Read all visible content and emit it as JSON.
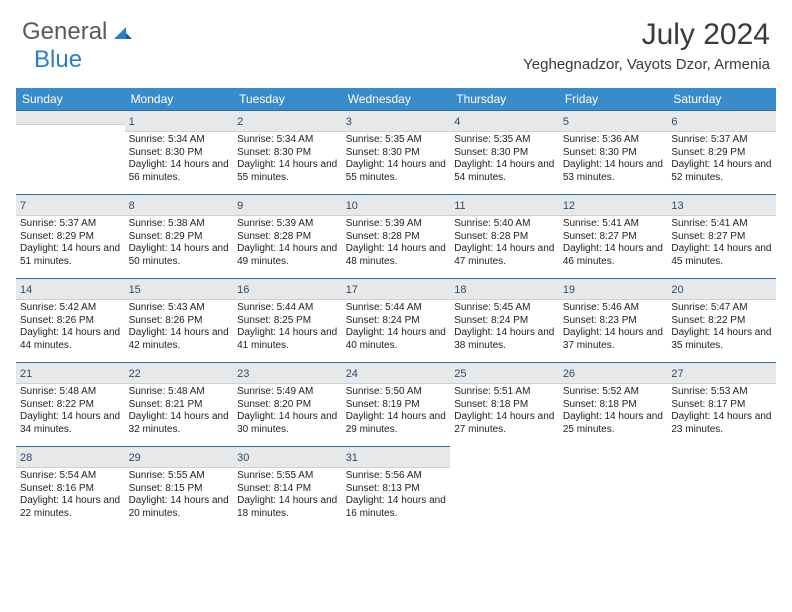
{
  "brand": {
    "word1": "General",
    "word2": "Blue"
  },
  "title": "July 2024",
  "location": "Yeghegnadzor, Vayots Dzor, Armenia",
  "colors": {
    "header_bg": "#3a8bc9",
    "header_text": "#ffffff",
    "daynum_bg": "#e7e8ea",
    "daynum_border_top": "#2b6fa8",
    "logo_gray": "#5a5a5a",
    "logo_blue": "#2b7fc4"
  },
  "daysOfWeek": [
    "Sunday",
    "Monday",
    "Tuesday",
    "Wednesday",
    "Thursday",
    "Friday",
    "Saturday"
  ],
  "firstDayOffset": 1,
  "days": [
    {
      "n": 1,
      "sr": "5:34 AM",
      "ss": "8:30 PM",
      "dl": "14 hours and 56 minutes."
    },
    {
      "n": 2,
      "sr": "5:34 AM",
      "ss": "8:30 PM",
      "dl": "14 hours and 55 minutes."
    },
    {
      "n": 3,
      "sr": "5:35 AM",
      "ss": "8:30 PM",
      "dl": "14 hours and 55 minutes."
    },
    {
      "n": 4,
      "sr": "5:35 AM",
      "ss": "8:30 PM",
      "dl": "14 hours and 54 minutes."
    },
    {
      "n": 5,
      "sr": "5:36 AM",
      "ss": "8:30 PM",
      "dl": "14 hours and 53 minutes."
    },
    {
      "n": 6,
      "sr": "5:37 AM",
      "ss": "8:29 PM",
      "dl": "14 hours and 52 minutes."
    },
    {
      "n": 7,
      "sr": "5:37 AM",
      "ss": "8:29 PM",
      "dl": "14 hours and 51 minutes."
    },
    {
      "n": 8,
      "sr": "5:38 AM",
      "ss": "8:29 PM",
      "dl": "14 hours and 50 minutes."
    },
    {
      "n": 9,
      "sr": "5:39 AM",
      "ss": "8:28 PM",
      "dl": "14 hours and 49 minutes."
    },
    {
      "n": 10,
      "sr": "5:39 AM",
      "ss": "8:28 PM",
      "dl": "14 hours and 48 minutes."
    },
    {
      "n": 11,
      "sr": "5:40 AM",
      "ss": "8:28 PM",
      "dl": "14 hours and 47 minutes."
    },
    {
      "n": 12,
      "sr": "5:41 AM",
      "ss": "8:27 PM",
      "dl": "14 hours and 46 minutes."
    },
    {
      "n": 13,
      "sr": "5:41 AM",
      "ss": "8:27 PM",
      "dl": "14 hours and 45 minutes."
    },
    {
      "n": 14,
      "sr": "5:42 AM",
      "ss": "8:26 PM",
      "dl": "14 hours and 44 minutes."
    },
    {
      "n": 15,
      "sr": "5:43 AM",
      "ss": "8:26 PM",
      "dl": "14 hours and 42 minutes."
    },
    {
      "n": 16,
      "sr": "5:44 AM",
      "ss": "8:25 PM",
      "dl": "14 hours and 41 minutes."
    },
    {
      "n": 17,
      "sr": "5:44 AM",
      "ss": "8:24 PM",
      "dl": "14 hours and 40 minutes."
    },
    {
      "n": 18,
      "sr": "5:45 AM",
      "ss": "8:24 PM",
      "dl": "14 hours and 38 minutes."
    },
    {
      "n": 19,
      "sr": "5:46 AM",
      "ss": "8:23 PM",
      "dl": "14 hours and 37 minutes."
    },
    {
      "n": 20,
      "sr": "5:47 AM",
      "ss": "8:22 PM",
      "dl": "14 hours and 35 minutes."
    },
    {
      "n": 21,
      "sr": "5:48 AM",
      "ss": "8:22 PM",
      "dl": "14 hours and 34 minutes."
    },
    {
      "n": 22,
      "sr": "5:48 AM",
      "ss": "8:21 PM",
      "dl": "14 hours and 32 minutes."
    },
    {
      "n": 23,
      "sr": "5:49 AM",
      "ss": "8:20 PM",
      "dl": "14 hours and 30 minutes."
    },
    {
      "n": 24,
      "sr": "5:50 AM",
      "ss": "8:19 PM",
      "dl": "14 hours and 29 minutes."
    },
    {
      "n": 25,
      "sr": "5:51 AM",
      "ss": "8:18 PM",
      "dl": "14 hours and 27 minutes."
    },
    {
      "n": 26,
      "sr": "5:52 AM",
      "ss": "8:18 PM",
      "dl": "14 hours and 25 minutes."
    },
    {
      "n": 27,
      "sr": "5:53 AM",
      "ss": "8:17 PM",
      "dl": "14 hours and 23 minutes."
    },
    {
      "n": 28,
      "sr": "5:54 AM",
      "ss": "8:16 PM",
      "dl": "14 hours and 22 minutes."
    },
    {
      "n": 29,
      "sr": "5:55 AM",
      "ss": "8:15 PM",
      "dl": "14 hours and 20 minutes."
    },
    {
      "n": 30,
      "sr": "5:55 AM",
      "ss": "8:14 PM",
      "dl": "14 hours and 18 minutes."
    },
    {
      "n": 31,
      "sr": "5:56 AM",
      "ss": "8:13 PM",
      "dl": "14 hours and 16 minutes."
    }
  ],
  "labels": {
    "sunrise": "Sunrise:",
    "sunset": "Sunset:",
    "daylight": "Daylight:"
  }
}
